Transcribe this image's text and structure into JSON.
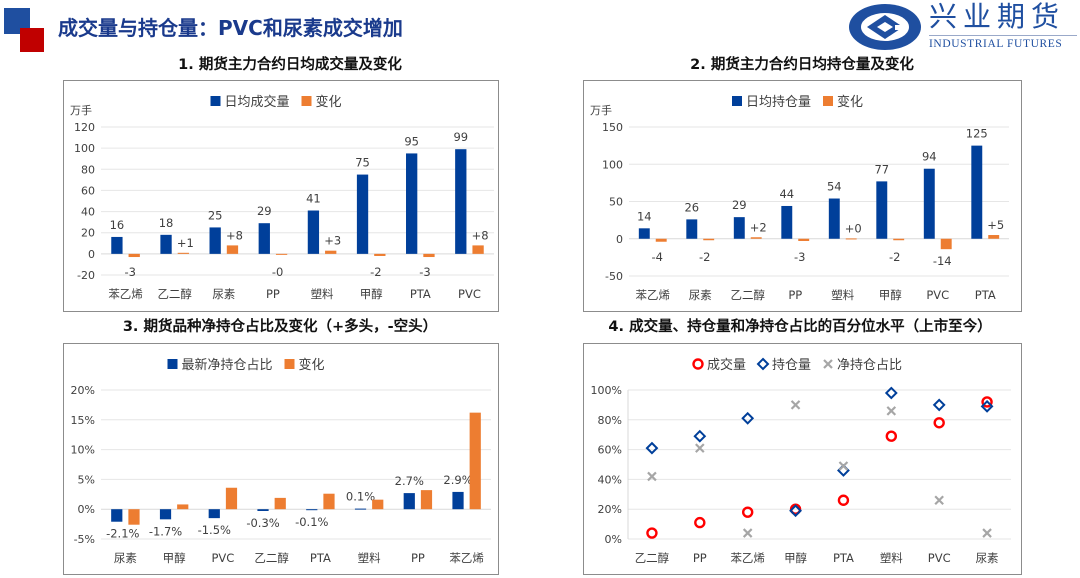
{
  "header": {
    "title": "成交量与持仓量：PVC和尿素成交增加",
    "logo_cn": "兴业期货",
    "logo_en": "INDUSTRIAL FUTURES"
  },
  "colors": {
    "blue": "#003f9a",
    "orange": "#ed7d31",
    "red": "#ff0000",
    "gray": "#a6a6a6",
    "title": "#1a3a8c"
  },
  "chart_data": [
    {
      "type": "bar",
      "title": "1. 期货主力合约日均成交量及变化",
      "ylabel": "万手",
      "ylim": [
        -20,
        120
      ],
      "yticks": [
        -20,
        0,
        20,
        40,
        60,
        80,
        100,
        120
      ],
      "ytick_labels": [
        "-20",
        "0",
        "20",
        "40",
        "60",
        "80",
        "100",
        "120"
      ],
      "grid": true,
      "legend": "top",
      "categories": [
        "苯乙烯",
        "乙二醇",
        "尿素",
        "PP",
        "塑料",
        "甲醇",
        "PTA",
        "PVC"
      ],
      "series": [
        {
          "name": "日均成交量",
          "values": [
            16,
            18,
            25,
            29,
            41,
            75,
            95,
            99
          ],
          "labels": [
            "16",
            "18",
            "25",
            "29",
            "41",
            "75",
            "95",
            "99"
          ]
        },
        {
          "name": "变化",
          "values": [
            -3,
            1,
            8,
            -0.4,
            3,
            -2,
            -3,
            8
          ],
          "labels": [
            "-3",
            "+1",
            "+8",
            "-0",
            "+3",
            "-2",
            "-3",
            "+8"
          ]
        }
      ]
    },
    {
      "type": "bar",
      "title": "2. 期货主力合约日均持仓量及变化",
      "ylabel": "万手",
      "ylim": [
        -50,
        150
      ],
      "yticks": [
        -50,
        0,
        50,
        100,
        150
      ],
      "ytick_labels": [
        "-50",
        "0",
        "50",
        "100",
        "150"
      ],
      "grid": true,
      "legend": "top",
      "categories": [
        "苯乙烯",
        "尿素",
        "乙二醇",
        "PP",
        "塑料",
        "甲醇",
        "PVC",
        "PTA"
      ],
      "series": [
        {
          "name": "日均持仓量",
          "values": [
            14,
            26,
            29,
            44,
            54,
            77,
            94,
            125
          ],
          "labels": [
            "14",
            "26",
            "29",
            "44",
            "54",
            "77",
            "94",
            "125"
          ]
        },
        {
          "name": "变化",
          "values": [
            -4,
            -2,
            2,
            -3,
            0.4,
            -2,
            -14,
            5
          ],
          "labels": [
            "-4",
            "-2",
            "+2",
            "-3",
            "+0",
            "-2",
            "-14",
            "+5"
          ]
        }
      ]
    },
    {
      "type": "bar",
      "title": "3. 期货品种净持仓占比及变化（+多头，-空头）",
      "ylim": [
        -5,
        20
      ],
      "yticks": [
        -5,
        0,
        5,
        10,
        15,
        20
      ],
      "ytick_labels": [
        "-5%",
        "0%",
        "5%",
        "10%",
        "15%",
        "20%"
      ],
      "grid": true,
      "legend": "top",
      "categories": [
        "尿素",
        "甲醇",
        "PVC",
        "乙二醇",
        "PTA",
        "塑料",
        "PP",
        "苯乙烯"
      ],
      "series": [
        {
          "name": "最新净持仓占比",
          "values": [
            -2.1,
            -1.7,
            -1.5,
            -0.3,
            -0.1,
            0.1,
            2.7,
            2.9
          ],
          "labels": [
            "-2.1%",
            "-1.7%",
            "-1.5%",
            "-0.3%",
            "-0.1%",
            "0.1%",
            "2.7%",
            "2.9%"
          ]
        },
        {
          "name": "变化",
          "values": [
            -2.6,
            0.8,
            3.6,
            1.9,
            2.6,
            1.6,
            3.2,
            16.2
          ]
        }
      ]
    },
    {
      "type": "scatter",
      "title": "4. 成交量、持仓量和净持仓占比的百分位水平（上市至今）",
      "ylim": [
        0,
        100
      ],
      "yticks": [
        0,
        20,
        40,
        60,
        80,
        100
      ],
      "ytick_labels": [
        "0%",
        "20%",
        "40%",
        "60%",
        "80%",
        "100%"
      ],
      "grid": true,
      "legend": "top",
      "categories": [
        "乙二醇",
        "PP",
        "苯乙烯",
        "甲醇",
        "PTA",
        "塑料",
        "PVC",
        "尿素"
      ],
      "series": [
        {
          "name": "成交量",
          "marker": "circle",
          "values": [
            4,
            11,
            18,
            20,
            26,
            69,
            78,
            92
          ]
        },
        {
          "name": "持仓量",
          "marker": "diamond",
          "values": [
            61,
            69,
            81,
            19,
            46,
            98,
            90,
            89
          ]
        },
        {
          "name": "净持仓占比",
          "marker": "x",
          "values": [
            42,
            61,
            4,
            90,
            49,
            86,
            26,
            4
          ]
        }
      ]
    }
  ]
}
